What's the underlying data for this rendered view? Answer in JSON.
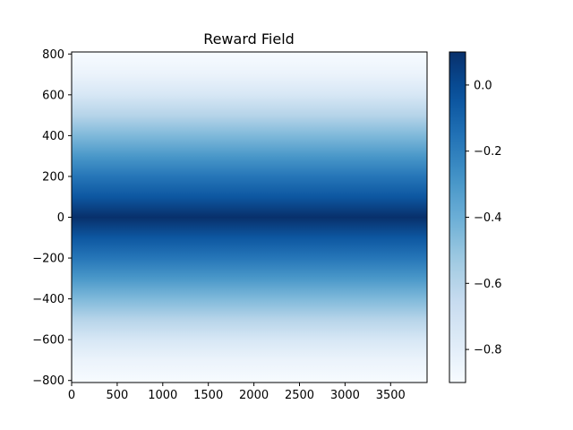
{
  "chart_data": {
    "type": "heatmap",
    "title": "Reward Field",
    "xlabel": "",
    "ylabel": "",
    "colormap": "Blues",
    "x_extent": [
      0,
      3900
    ],
    "y_extent": [
      -810,
      810
    ],
    "x_ticks": [
      0,
      500,
      1000,
      1500,
      2000,
      2500,
      3000,
      3500
    ],
    "y_ticks": [
      -800,
      -600,
      -400,
      -200,
      0,
      200,
      400,
      600,
      800
    ],
    "x_tick_labels": [
      "0",
      "500",
      "1000",
      "1500",
      "2000",
      "2500",
      "3000",
      "3500"
    ],
    "y_tick_labels": [
      "−800",
      "−600",
      "−400",
      "−200",
      "0",
      "200",
      "400",
      "600",
      "800"
    ],
    "field": {
      "description_of_values": "reward constant along x, varies with y",
      "y": [
        -810,
        -700,
        -600,
        -500,
        -400,
        -300,
        -200,
        -100,
        0,
        100,
        200,
        300,
        400,
        500,
        600,
        700,
        810
      ],
      "value": [
        -0.9,
        -0.84,
        -0.74,
        -0.6,
        -0.45,
        -0.3,
        -0.17,
        -0.05,
        0.1,
        -0.05,
        -0.17,
        -0.3,
        -0.45,
        -0.6,
        -0.74,
        -0.84,
        -0.9
      ]
    },
    "colorbar": {
      "range": [
        -0.9,
        0.1
      ],
      "ticks": [
        0.0,
        -0.2,
        -0.4,
        -0.6,
        -0.8
      ],
      "tick_labels": [
        "0.0",
        "−0.2",
        "−0.4",
        "−0.6",
        "−0.8"
      ]
    },
    "grid": false,
    "legend": "none"
  }
}
